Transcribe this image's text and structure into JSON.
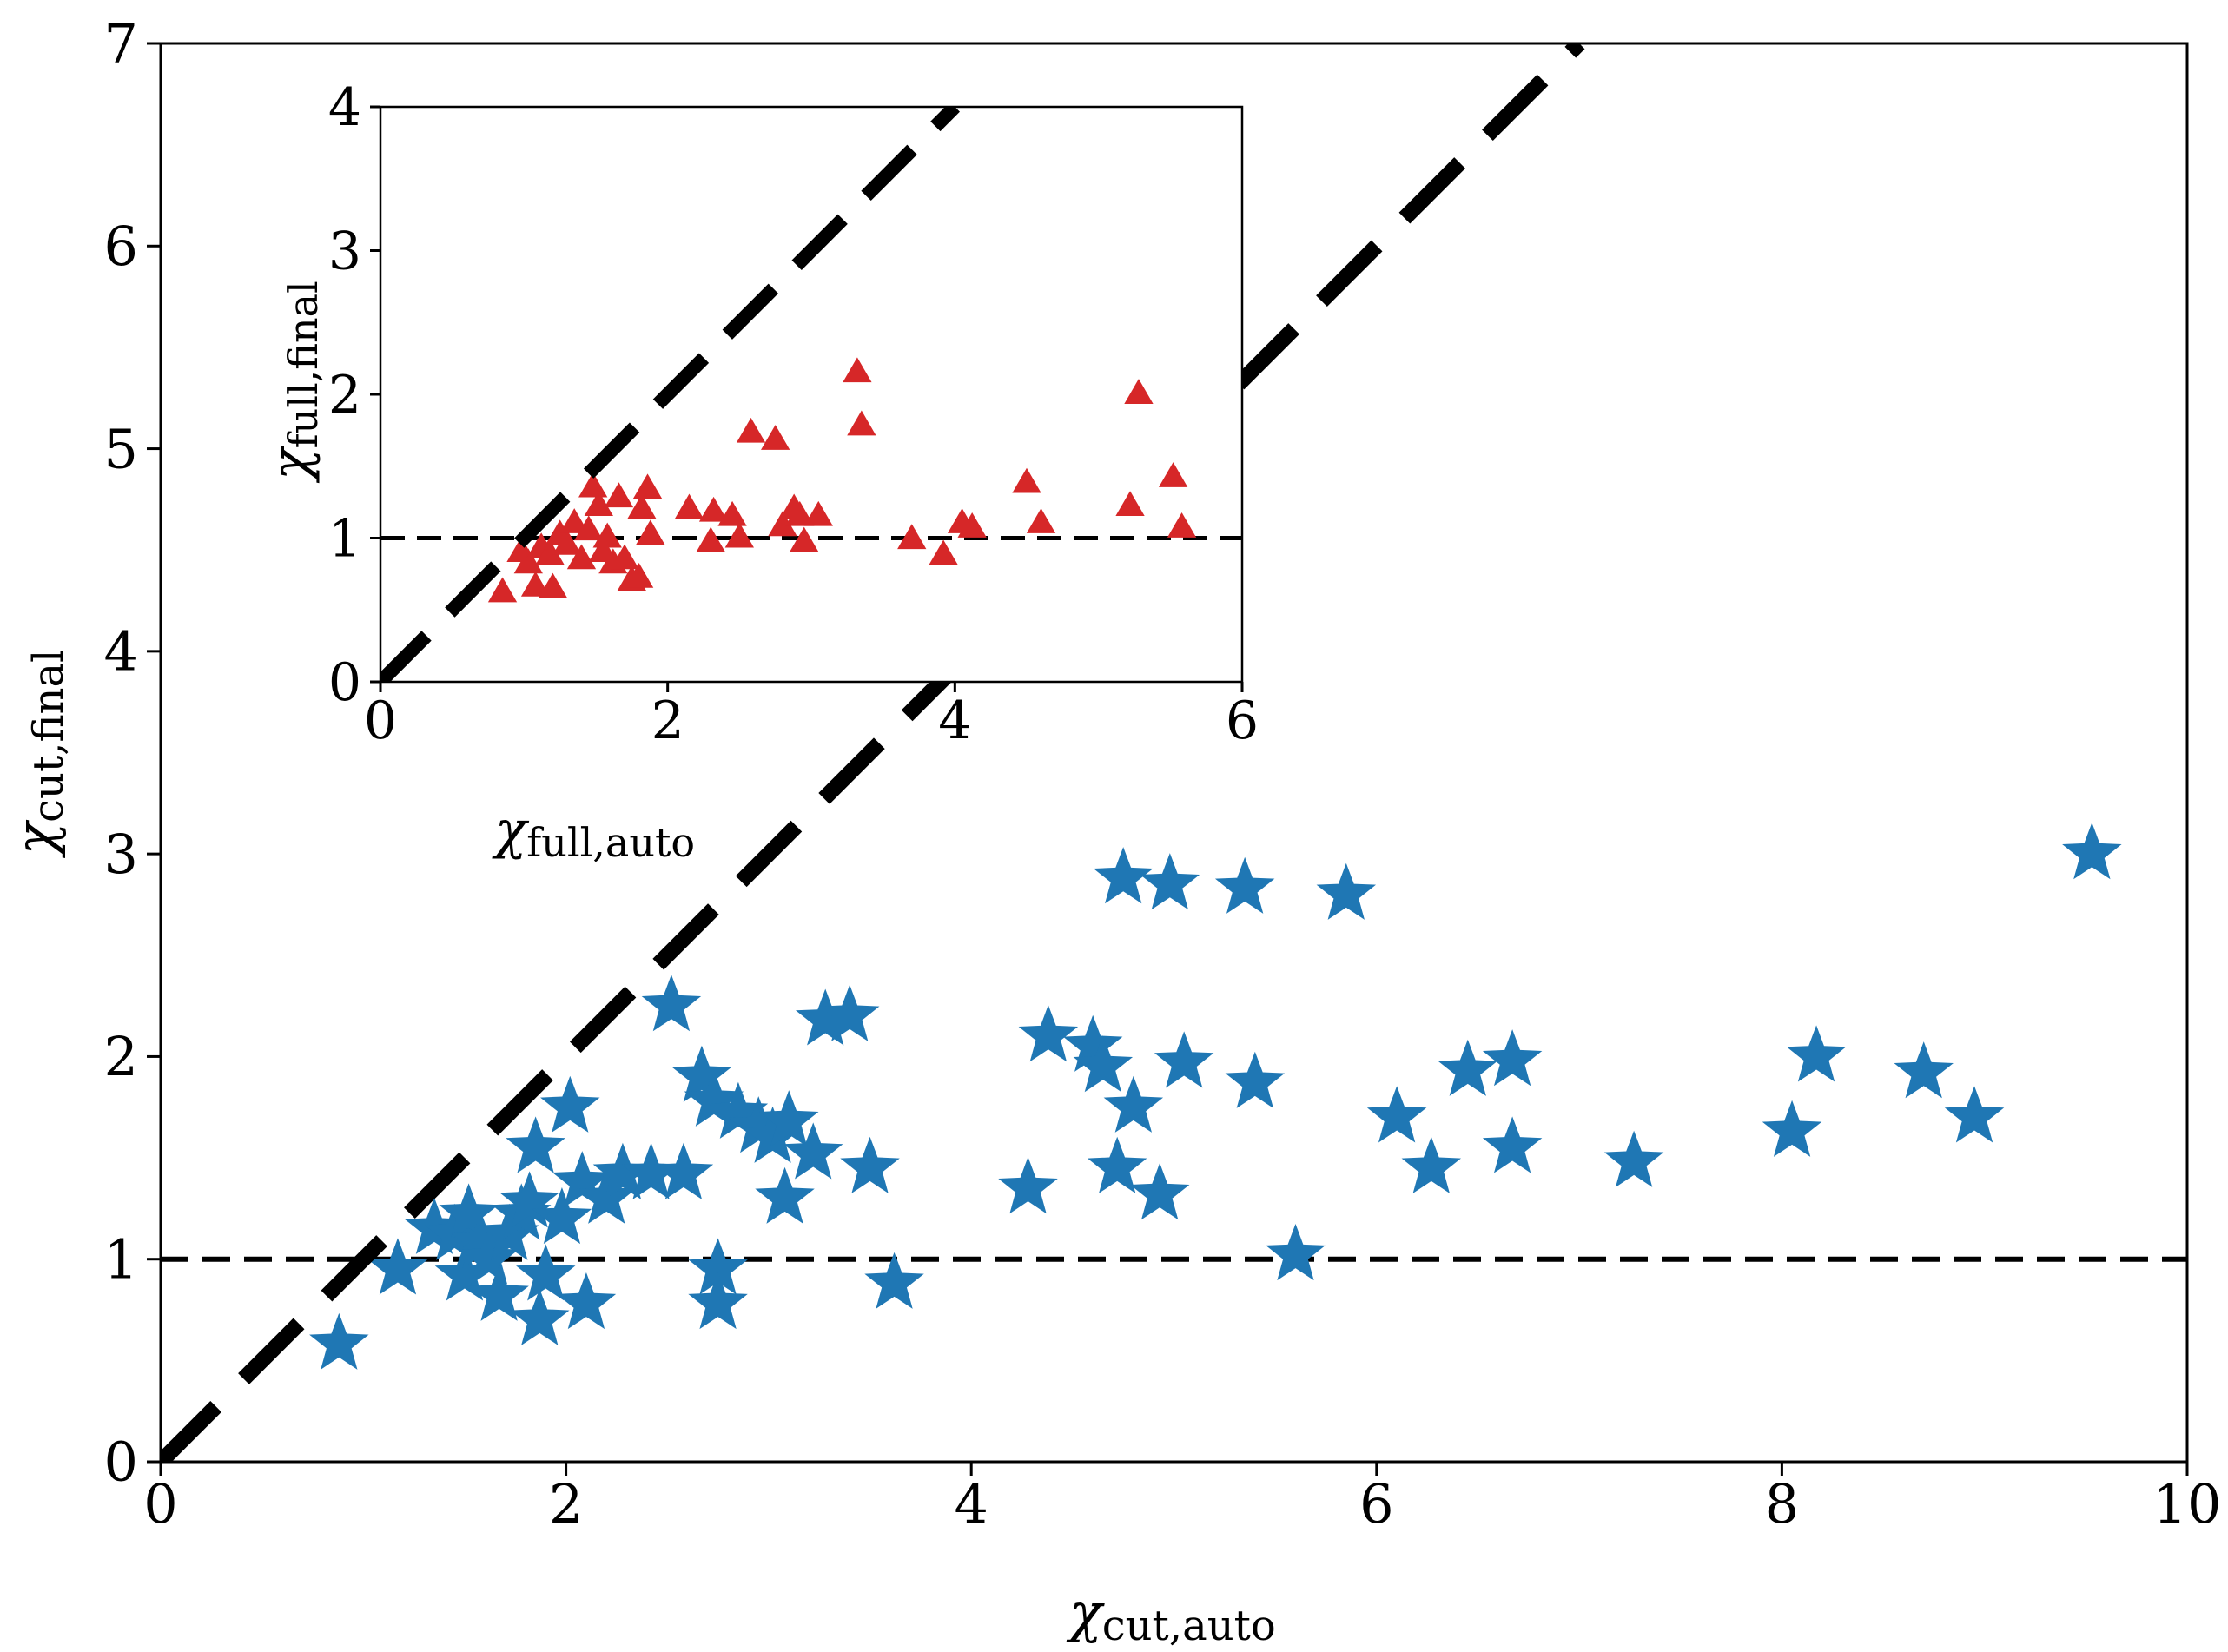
{
  "colors": {
    "main_marker": "#1f77b4",
    "inset_marker": "#d62728",
    "reference_line": "#000000",
    "axes": "#000000"
  },
  "chart_data": [
    {
      "id": "main",
      "type": "scatter",
      "marker": "star",
      "xlabel": {
        "symbol": "χ",
        "sub": "cut,auto"
      },
      "ylabel": {
        "symbol": "χ",
        "sub": "cut,final"
      },
      "xlim": [
        0,
        10
      ],
      "ylim": [
        0,
        7
      ],
      "xticks": [
        "0",
        "2",
        "4",
        "6",
        "8",
        "10"
      ],
      "yticks": [
        "0",
        "1",
        "2",
        "3",
        "4",
        "5",
        "6",
        "7"
      ],
      "reference_lines": [
        {
          "kind": "diagonal",
          "slope": 1,
          "style": "thick-dashed"
        },
        {
          "kind": "horizontal",
          "y": 1,
          "style": "dashed"
        }
      ],
      "points": [
        [
          0.88,
          0.58
        ],
        [
          1.17,
          0.95
        ],
        [
          1.35,
          1.15
        ],
        [
          1.45,
          1.12
        ],
        [
          1.5,
          0.92
        ],
        [
          1.52,
          1.22
        ],
        [
          1.58,
          1.08
        ],
        [
          1.62,
          1.0
        ],
        [
          1.67,
          0.82
        ],
        [
          1.72,
          1.12
        ],
        [
          1.78,
          1.22
        ],
        [
          1.82,
          1.28
        ],
        [
          1.85,
          1.55
        ],
        [
          1.87,
          0.7
        ],
        [
          1.9,
          0.92
        ],
        [
          1.98,
          1.2
        ],
        [
          2.02,
          1.75
        ],
        [
          2.08,
          1.38
        ],
        [
          2.1,
          0.78
        ],
        [
          2.2,
          1.3
        ],
        [
          2.28,
          1.42
        ],
        [
          2.42,
          1.42
        ],
        [
          2.52,
          2.25
        ],
        [
          2.58,
          1.42
        ],
        [
          2.67,
          1.9
        ],
        [
          2.73,
          1.78
        ],
        [
          2.75,
          0.95
        ],
        [
          2.75,
          0.78
        ],
        [
          2.85,
          1.72
        ],
        [
          2.95,
          1.65
        ],
        [
          3.02,
          1.6
        ],
        [
          3.08,
          1.3
        ],
        [
          3.1,
          1.68
        ],
        [
          3.22,
          1.52
        ],
        [
          3.28,
          2.18
        ],
        [
          3.4,
          2.2
        ],
        [
          3.5,
          1.45
        ],
        [
          3.62,
          0.88
        ],
        [
          4.28,
          1.35
        ],
        [
          4.38,
          2.1
        ],
        [
          4.6,
          2.05
        ],
        [
          4.65,
          1.95
        ],
        [
          4.72,
          1.45
        ],
        [
          4.75,
          2.88
        ],
        [
          4.8,
          1.75
        ],
        [
          4.93,
          1.32
        ],
        [
          4.98,
          2.85
        ],
        [
          5.05,
          1.97
        ],
        [
          5.35,
          2.83
        ],
        [
          5.4,
          1.87
        ],
        [
          5.6,
          1.02
        ],
        [
          5.85,
          2.8
        ],
        [
          6.1,
          1.7
        ],
        [
          6.27,
          1.45
        ],
        [
          6.45,
          1.93
        ],
        [
          6.67,
          1.98
        ],
        [
          6.67,
          1.55
        ],
        [
          7.27,
          1.48
        ],
        [
          8.05,
          1.63
        ],
        [
          8.17,
          2.0
        ],
        [
          8.7,
          1.92
        ],
        [
          8.95,
          1.7
        ],
        [
          9.53,
          3.0
        ]
      ]
    },
    {
      "id": "inset",
      "type": "scatter",
      "marker": "triangle",
      "xlabel": {
        "symbol": "χ",
        "sub": "full,auto"
      },
      "ylabel": {
        "symbol": "χ",
        "sub": "full,final"
      },
      "xlim": [
        0,
        6
      ],
      "ylim": [
        0,
        4
      ],
      "xticks": [
        "0",
        "2",
        "4",
        "6"
      ],
      "yticks": [
        "0",
        "1",
        "2",
        "3",
        "4"
      ],
      "reference_lines": [
        {
          "kind": "diagonal",
          "slope": 1,
          "style": "thick-dashed"
        },
        {
          "kind": "horizontal",
          "y": 1,
          "style": "dashed"
        }
      ],
      "points": [
        [
          0.85,
          0.62
        ],
        [
          0.98,
          0.9
        ],
        [
          1.03,
          0.82
        ],
        [
          1.08,
          0.66
        ],
        [
          1.12,
          0.93
        ],
        [
          1.18,
          0.88
        ],
        [
          1.2,
          0.65
        ],
        [
          1.25,
          1.02
        ],
        [
          1.3,
          0.95
        ],
        [
          1.35,
          1.1
        ],
        [
          1.4,
          0.85
        ],
        [
          1.45,
          1.05
        ],
        [
          1.48,
          1.35
        ],
        [
          1.52,
          1.22
        ],
        [
          1.55,
          0.9
        ],
        [
          1.58,
          1.0
        ],
        [
          1.62,
          0.82
        ],
        [
          1.66,
          1.28
        ],
        [
          1.7,
          0.85
        ],
        [
          1.75,
          0.7
        ],
        [
          1.8,
          0.72
        ],
        [
          1.82,
          1.2
        ],
        [
          1.86,
          1.34
        ],
        [
          1.88,
          1.02
        ],
        [
          2.15,
          1.2
        ],
        [
          2.3,
          0.97
        ],
        [
          2.32,
          1.18
        ],
        [
          2.45,
          1.15
        ],
        [
          2.5,
          1.0
        ],
        [
          2.58,
          1.73
        ],
        [
          2.75,
          1.68
        ],
        [
          2.8,
          1.08
        ],
        [
          2.88,
          1.2
        ],
        [
          2.92,
          1.15
        ],
        [
          2.95,
          0.97
        ],
        [
          3.05,
          1.15
        ],
        [
          3.32,
          2.15
        ],
        [
          3.35,
          1.78
        ],
        [
          3.7,
          0.99
        ],
        [
          3.92,
          0.88
        ],
        [
          4.05,
          1.1
        ],
        [
          4.12,
          1.07
        ],
        [
          4.5,
          1.38
        ],
        [
          4.6,
          1.1
        ],
        [
          5.22,
          1.22
        ],
        [
          5.28,
          2.0
        ],
        [
          5.52,
          1.42
        ],
        [
          5.58,
          1.07
        ]
      ]
    }
  ]
}
